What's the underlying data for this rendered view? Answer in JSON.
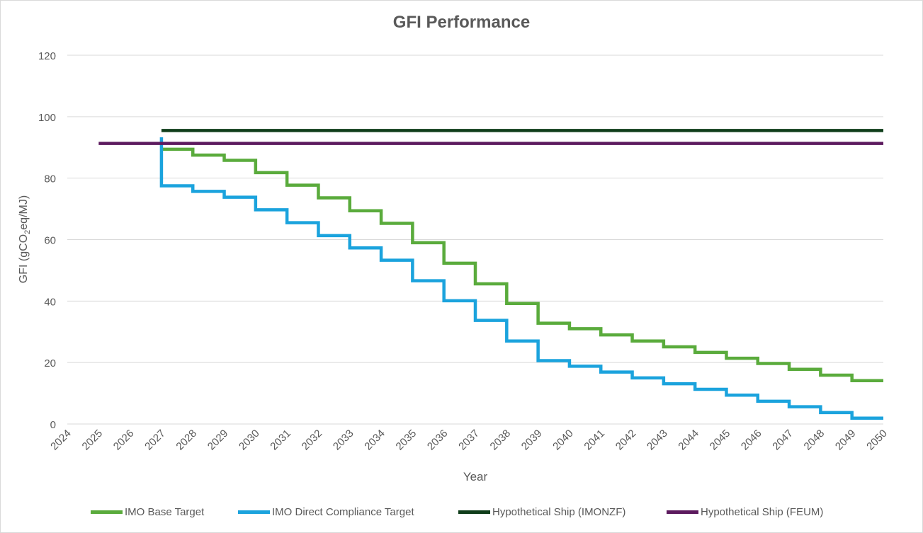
{
  "chart_data": {
    "type": "line",
    "title": "GFI Performance",
    "xlabel": "Year",
    "ylabel": "GFI (gCO",
    "ylabel_sub": "2",
    "ylabel_tail": "eq/MJ)",
    "ylim": [
      0,
      120
    ],
    "yticks": [
      0,
      20,
      40,
      60,
      80,
      100,
      120
    ],
    "x": [
      "2024",
      "2025",
      "2026",
      "2027",
      "2028",
      "2029",
      "2030",
      "2031",
      "2032",
      "2033",
      "2034",
      "2035",
      "2036",
      "2037",
      "2038",
      "2039",
      "2040",
      "2041",
      "2042",
      "2043",
      "2044",
      "2045",
      "2046",
      "2047",
      "2048",
      "2049",
      "2050"
    ],
    "grid": true,
    "legend_position": "bottom",
    "series": [
      {
        "name": "IMO Base Target",
        "color": "#5aab3c",
        "step": true,
        "x": [
          "2027",
          "2028",
          "2029",
          "2030",
          "2031",
          "2032",
          "2033",
          "2034",
          "2035",
          "2036",
          "2037",
          "2038",
          "2039",
          "2040",
          "2041",
          "2042",
          "2043",
          "2044",
          "2045",
          "2046",
          "2047",
          "2048",
          "2049",
          "2050"
        ],
        "values": [
          89.4,
          87.5,
          85.8,
          81.8,
          77.7,
          73.6,
          69.4,
          65.3,
          59.0,
          52.3,
          45.6,
          39.2,
          32.8,
          31.0,
          29.0,
          27.0,
          25.1,
          23.3,
          21.4,
          19.7,
          17.8,
          15.9,
          14.1,
          14.1
        ]
      },
      {
        "name": "IMO Direct Compliance Target",
        "color": "#1ba3dd",
        "step": true,
        "start_value": 93.3,
        "x": [
          "2027",
          "2028",
          "2029",
          "2030",
          "2031",
          "2032",
          "2033",
          "2034",
          "2035",
          "2036",
          "2037",
          "2038",
          "2039",
          "2040",
          "2041",
          "2042",
          "2043",
          "2044",
          "2045",
          "2046",
          "2047",
          "2048",
          "2049",
          "2050"
        ],
        "values": [
          77.5,
          75.7,
          73.8,
          69.7,
          65.5,
          61.3,
          57.3,
          53.3,
          46.6,
          40.1,
          33.7,
          27.0,
          20.6,
          18.8,
          16.9,
          15.0,
          13.1,
          11.3,
          9.4,
          7.4,
          5.6,
          3.7,
          1.9,
          1.9
        ]
      },
      {
        "name": "Hypothetical Ship (IMONZF)",
        "color": "#0f3d1a",
        "step": false,
        "x": [
          "2027",
          "2050"
        ],
        "values": [
          95.5,
          95.5
        ]
      },
      {
        "name": "Hypothetical Ship (FEUM)",
        "color": "#5c1a5e",
        "step": false,
        "x": [
          "2025",
          "2050"
        ],
        "values": [
          91.3,
          91.3
        ]
      }
    ]
  }
}
